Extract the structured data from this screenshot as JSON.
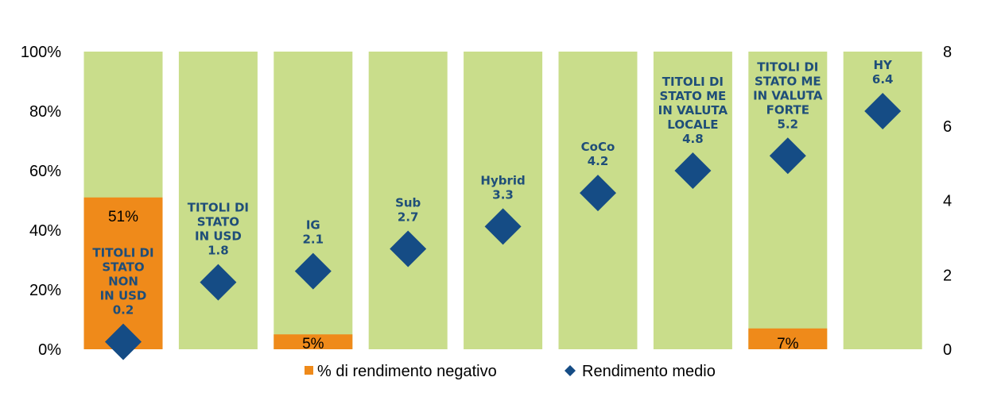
{
  "chart_data": {
    "type": "bar",
    "title": "",
    "xlabel": "",
    "ylabel": "",
    "ylim": [
      0,
      100
    ],
    "y2lim": [
      0,
      8
    ],
    "y_ticks": [
      "0%",
      "20%",
      "40%",
      "60%",
      "80%",
      "100%"
    ],
    "y2_ticks": [
      "0",
      "2",
      "4",
      "6",
      "8"
    ],
    "categories": [
      [
        "TITOLI DI",
        "STATO",
        "NON",
        "IN USD"
      ],
      [
        "TITOLI DI",
        "STATO",
        "IN USD"
      ],
      [
        "IG"
      ],
      [
        "Sub"
      ],
      [
        "Hybrid"
      ],
      [
        "CoCo"
      ],
      [
        "TITOLI DI",
        "STATO ME",
        "IN VALUTA",
        "LOCALE"
      ],
      [
        "TITOLI DI",
        "STATO ME",
        "IN VALUTA",
        "FORTE"
      ],
      [
        "HY"
      ]
    ],
    "series": [
      {
        "name": "% di rendimento negativo",
        "kind": "bar",
        "values": [
          51,
          0,
          5,
          0,
          0,
          0,
          0,
          7,
          0
        ],
        "labels": [
          "51%",
          "",
          "5%",
          "",
          "",
          "",
          "",
          "7%",
          ""
        ]
      },
      {
        "name": "Rendimento medio",
        "kind": "diamond",
        "axis": "right",
        "values": [
          0.2,
          1.8,
          2.1,
          2.7,
          3.3,
          4.2,
          4.8,
          5.2,
          6.4
        ],
        "labels": [
          "0.2",
          "1.8",
          "2.1",
          "2.7",
          "3.3",
          "4.2",
          "4.8",
          "5.2",
          "6.4"
        ]
      }
    ],
    "legend": {
      "position": "bottom"
    },
    "colors": {
      "background_bar": "#c9dd8b",
      "negative": "#ef8a1a",
      "diamond": "#154c85",
      "label": "#1f4e79"
    }
  }
}
